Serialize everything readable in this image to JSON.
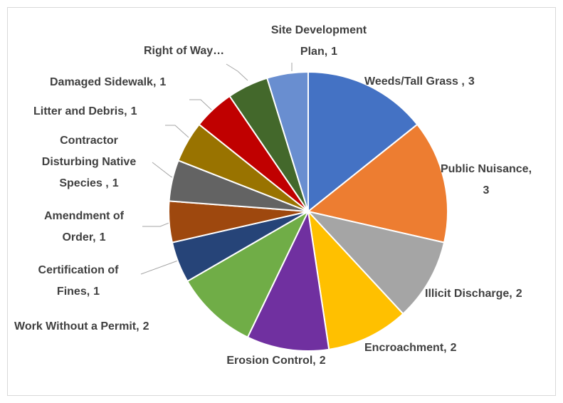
{
  "chart_data": {
    "type": "pie",
    "categories": [
      "Weeds/Tall Grass  ,",
      "Public Nuisance,",
      "Illicit Discharge,",
      "Encroachment,",
      "Erosion Control,",
      "Work Without a Permit,",
      "Certification of Fines,",
      "Amendment of Order,",
      "Contractor Disturbing Native Species ,",
      "Litter and Debris,",
      "Damaged Sidewalk,",
      "Right of Way…",
      "Site Development Plan,"
    ],
    "values": [
      3,
      3,
      2,
      2,
      2,
      2,
      1,
      1,
      1,
      1,
      1,
      1,
      1
    ],
    "value_labels": [
      3,
      3,
      2,
      2,
      2,
      2,
      1,
      1,
      1,
      1,
      1,
      null,
      1
    ],
    "colors": [
      "#4472c4",
      "#ed7d31",
      "#a5a5a5",
      "#ffc000",
      "#7030a0",
      "#70ad47",
      "#264478",
      "#9e480e",
      "#636363",
      "#997300",
      "#c00000",
      "#43682b",
      "#698ed0"
    ]
  }
}
